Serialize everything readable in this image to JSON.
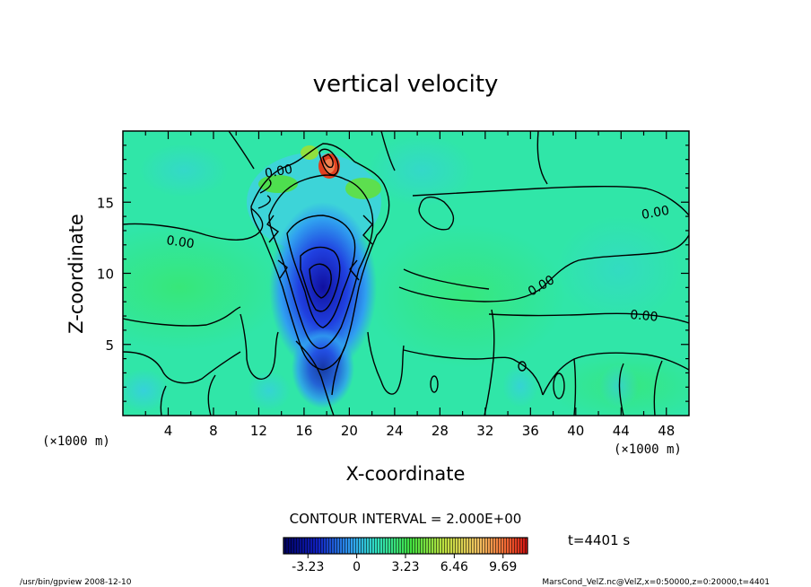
{
  "chart_data": {
    "type": "heatmap",
    "title": "vertical velocity",
    "xlabel": "X-coordinate",
    "ylabel": "Z-coordinate",
    "x_unit": "(×1000 m)",
    "z_unit": "(×1000 m)",
    "xlim": [
      0,
      50
    ],
    "ylim": [
      0,
      20
    ],
    "x_ticks": [
      "4",
      "8",
      "12",
      "16",
      "20",
      "24",
      "28",
      "32",
      "36",
      "40",
      "44",
      "48"
    ],
    "y_ticks": [
      "5",
      "10",
      "15"
    ],
    "contour_labels": [
      "0.00",
      "0.00",
      "0.00",
      "0.00",
      "0.00"
    ],
    "contour_interval": "CONTOUR INTERVAL = 2.000E+00",
    "colorbar": {
      "ticks": [
        "-3.23",
        "0",
        "3.23",
        "6.46",
        "9.69"
      ],
      "colors": [
        "#000080",
        "#1030d0",
        "#30a0f0",
        "#30e0c0",
        "#40e040",
        "#d0e040",
        "#f0a030",
        "#e02020"
      ]
    },
    "time": "t=4401 s"
  },
  "footer": {
    "left": "/usr/bin/gpview   2008-12-10",
    "right": "MarsCond_VelZ.nc@VelZ,x=0:50000,z=0:20000,t=4401"
  }
}
